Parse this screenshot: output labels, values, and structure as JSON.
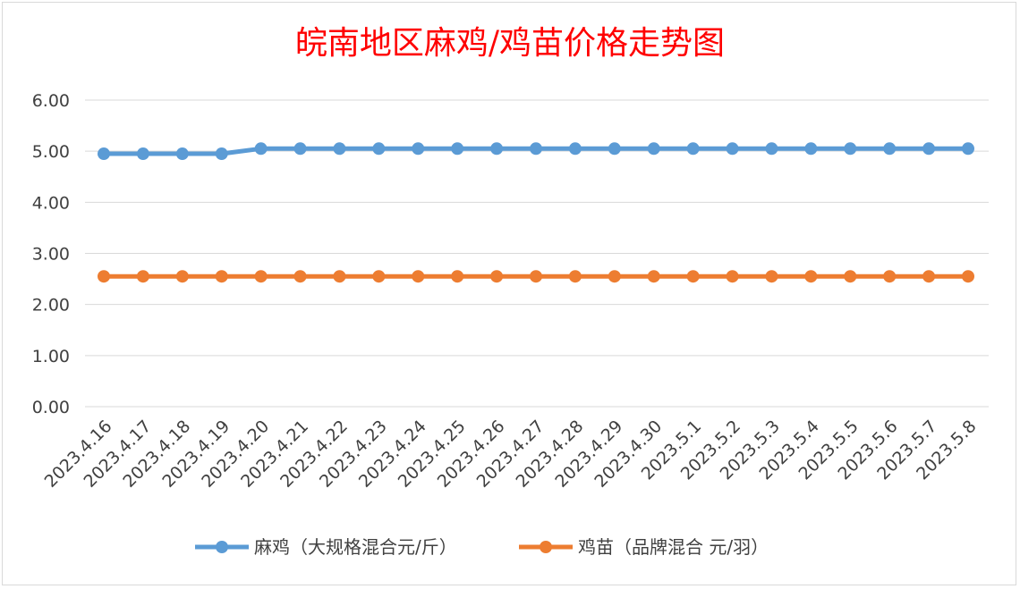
{
  "chart_data": {
    "type": "line",
    "title": "皖南地区麻鸡/鸡苗价格走势图",
    "xlabel": "",
    "ylabel": "",
    "ylim": [
      0,
      6
    ],
    "yticks": [
      "0.00",
      "1.00",
      "2.00",
      "3.00",
      "4.00",
      "5.00",
      "6.00"
    ],
    "grid": true,
    "legend": "bottom",
    "categories": [
      "2023.4.16",
      "2023.4.17",
      "2023.4.18",
      "2023.4.19",
      "2023.4.20",
      "2023.4.21",
      "2023.4.22",
      "2023.4.23",
      "2023.4.24",
      "2023.4.25",
      "2023.4.26",
      "2023.4.27",
      "2023.4.28",
      "2023.4.29",
      "2023.4.30",
      "2023.5.1",
      "2023.5.2",
      "2023.5.3",
      "2023.5.4",
      "2023.5.5",
      "2023.5.6",
      "2023.5.7",
      "2023.5.8"
    ],
    "series": [
      {
        "name": "麻鸡（大规格混合元/斤）",
        "color": "#5b9bd5",
        "values": [
          4.95,
          4.95,
          4.95,
          4.95,
          5.05,
          5.05,
          5.05,
          5.05,
          5.05,
          5.05,
          5.05,
          5.05,
          5.05,
          5.05,
          5.05,
          5.05,
          5.05,
          5.05,
          5.05,
          5.05,
          5.05,
          5.05,
          5.05
        ]
      },
      {
        "name": "鸡苗（品牌混合 元/羽）",
        "color": "#ed7d31",
        "values": [
          2.55,
          2.55,
          2.55,
          2.55,
          2.55,
          2.55,
          2.55,
          2.55,
          2.55,
          2.55,
          2.55,
          2.55,
          2.55,
          2.55,
          2.55,
          2.55,
          2.55,
          2.55,
          2.55,
          2.55,
          2.55,
          2.55,
          2.55
        ]
      }
    ]
  }
}
